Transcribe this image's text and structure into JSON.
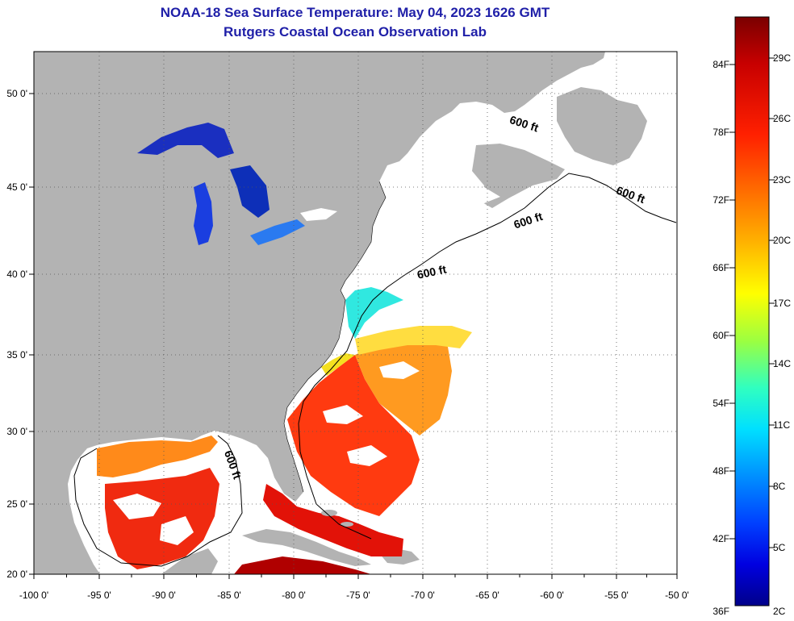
{
  "title": "NOAA-18 Sea Surface Temperature:  May 04, 2023 1626 GMT",
  "subtitle": "Rutgers Coastal Ocean Observation Lab",
  "map": {
    "lon_labels": [
      "-100 0'",
      "-95 0'",
      "-90 0'",
      "-85 0'",
      "-80 0'",
      "-75 0'",
      "-70 0'",
      "-65 0'",
      "-60 0'",
      "-55 0'",
      "-50 0'"
    ],
    "lat_labels": [
      "50 0'",
      "45 0'",
      "40 0'",
      "35 0'",
      "30 0'",
      "25 0'",
      "20 0'"
    ],
    "contour_labels": [
      "600 ft",
      "600 ft",
      "600 ft",
      "600 ft",
      "600 ft"
    ],
    "land_color": "#b3b3b3",
    "nodata_color": "#ffffff"
  },
  "colorbar": {
    "fahrenheit_labels": [
      "84F",
      "78F",
      "72F",
      "66F",
      "60F",
      "54F",
      "48F",
      "42F",
      "36F"
    ],
    "celsius_labels": [
      "29C",
      "26C",
      "23C",
      "20C",
      "17C",
      "14C",
      "11C",
      "8C",
      "5C",
      "2C"
    ],
    "colors": [
      "#7a0000",
      "#c80000",
      "#ff2000",
      "#ff7000",
      "#ffb000",
      "#ffff00",
      "#9cff40",
      "#30ffc0",
      "#00e0ff",
      "#0090ff",
      "#0040ff",
      "#0000e0",
      "#00008a"
    ]
  }
}
